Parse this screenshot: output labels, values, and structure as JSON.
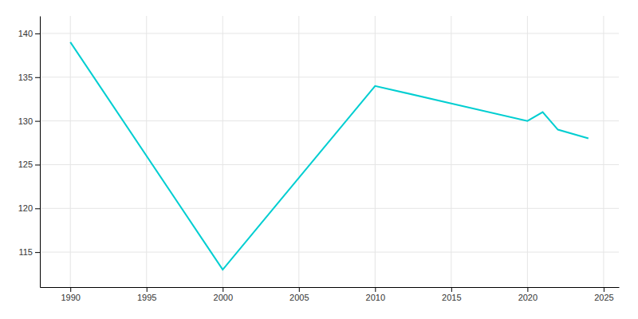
{
  "chart_data": {
    "type": "line",
    "x": [
      1990,
      2000,
      2010,
      2015,
      2020,
      2021,
      2022,
      2024
    ],
    "values": [
      139,
      113,
      134,
      132,
      130,
      131,
      129,
      128
    ],
    "color": "#00CED1",
    "xlim": [
      1988,
      2026
    ],
    "ylim": [
      111,
      142
    ],
    "xticks": [
      1990,
      1995,
      2000,
      2005,
      2010,
      2015,
      2020,
      2025
    ],
    "yticks": [
      115,
      120,
      125,
      130,
      135,
      140
    ],
    "grid": true
  }
}
